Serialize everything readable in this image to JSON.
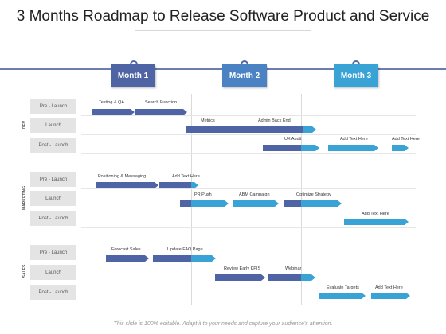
{
  "title": "3 Months Roadmap to Release Software Product and Service",
  "months": [
    {
      "label": "Month 1",
      "color": "#4f64a5"
    },
    {
      "label": "Month 2",
      "color": "#4a82c4"
    },
    {
      "label": "Month 3",
      "color": "#3aa3d6"
    }
  ],
  "sections": [
    {
      "label": "DEV",
      "rows": [
        "Pre - Launch",
        "Launch",
        "Post - Launch"
      ]
    },
    {
      "label": "MARKETING",
      "rows": [
        "Pre - Launch",
        "Launch",
        "Post - Launch"
      ]
    },
    {
      "label": "SALES",
      "rows": [
        "Pre - Launch",
        "Launch",
        "Post - Launch"
      ]
    }
  ],
  "tasks": [
    "Testing & QA",
    "Search Function",
    "Metrics",
    "Admin Back End",
    "UX Audit",
    "Add Text Here",
    "Add Text Here",
    "Positioning & Messaging",
    "Add Text Here",
    "PR Push",
    "ABM Campaign",
    "Optimize Strategy",
    "Add Text Here",
    "Forecast Sales",
    "Update FAQ Page",
    "Review Early KPIS",
    "Webinar",
    "Evaluate Targets",
    "Add Text Here"
  ],
  "footer": "This slide is 100% editable. Adapt it to your needs and capture your audience's attention."
}
